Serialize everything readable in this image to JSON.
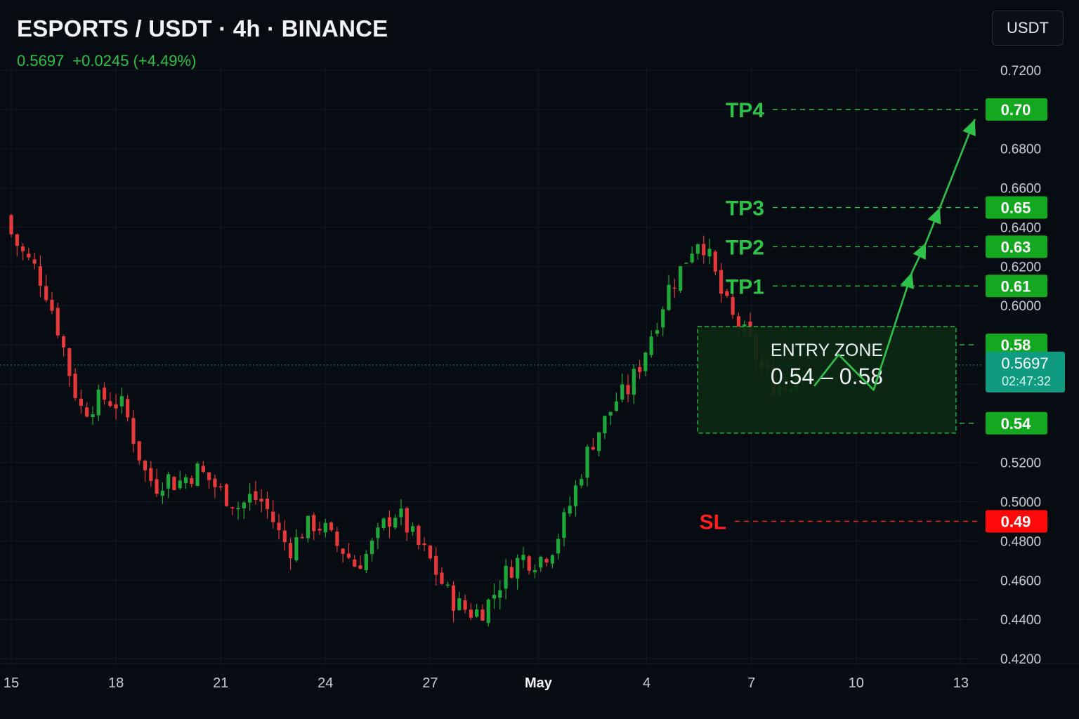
{
  "header": {
    "title": "ESPORTS / USDT · 4h · BINANCE",
    "last_price": "0.5697",
    "change": "+0.0245 (+4.49%)"
  },
  "currency_button": "USDT",
  "colors": {
    "background": "#070b12",
    "grid": "#141a24",
    "up": "#1fa83a",
    "down": "#e5393b",
    "target_green": "#2ec24a",
    "stop_red": "#ff1f1f",
    "price_badge": "#0f9b7f"
  },
  "chart_data": {
    "type": "candlestick",
    "title": "ESPORTS / USDT · 4h · BINANCE",
    "y_axis": {
      "min": 0.42,
      "max": 0.72,
      "ticks": [
        "0.7200",
        "0.7000",
        "0.6800",
        "0.6600",
        "0.6400",
        "0.6200",
        "0.6000",
        "0.5800",
        "0.5600",
        "0.5400",
        "0.5200",
        "0.5000",
        "0.4800",
        "0.4600",
        "0.4400",
        "0.4200"
      ]
    },
    "x_axis": {
      "labels": [
        {
          "text": "15",
          "day": 15,
          "bold": false
        },
        {
          "text": "18",
          "day": 18,
          "bold": false
        },
        {
          "text": "21",
          "day": 21,
          "bold": false
        },
        {
          "text": "24",
          "day": 24,
          "bold": false
        },
        {
          "text": "27",
          "day": 27,
          "bold": false
        },
        {
          "text": "May",
          "day": 30.1,
          "bold": true
        },
        {
          "text": "4",
          "day": 33.2,
          "bold": false
        },
        {
          "text": "7",
          "day": 36.2,
          "bold": false
        },
        {
          "text": "10",
          "day": 39.2,
          "bold": false
        },
        {
          "text": "13",
          "day": 42.2,
          "bold": false
        }
      ]
    },
    "current_price": {
      "value": 0.5697,
      "label": "0.5697",
      "countdown": "02:47:32"
    },
    "candle_path": [
      [
        15.0,
        0.642
      ],
      [
        15.3,
        0.632
      ],
      [
        15.6,
        0.624
      ],
      [
        15.9,
        0.618
      ],
      [
        16.2,
        0.606
      ],
      [
        16.6,
        0.583
      ],
      [
        16.9,
        0.561
      ],
      [
        17.2,
        0.546
      ],
      [
        17.5,
        0.55
      ],
      [
        17.8,
        0.553
      ],
      [
        18.1,
        0.551
      ],
      [
        18.4,
        0.548
      ],
      [
        18.7,
        0.531
      ],
      [
        19.0,
        0.515
      ],
      [
        19.3,
        0.508
      ],
      [
        19.6,
        0.513
      ],
      [
        19.9,
        0.509
      ],
      [
        20.2,
        0.513
      ],
      [
        20.5,
        0.516
      ],
      [
        20.8,
        0.512
      ],
      [
        21.1,
        0.506
      ],
      [
        21.4,
        0.502
      ],
      [
        21.7,
        0.497
      ],
      [
        22.0,
        0.502
      ],
      [
        22.3,
        0.501
      ],
      [
        22.6,
        0.493
      ],
      [
        22.9,
        0.481
      ],
      [
        23.2,
        0.476
      ],
      [
        23.5,
        0.485
      ],
      [
        23.8,
        0.489
      ],
      [
        24.1,
        0.487
      ],
      [
        24.4,
        0.479
      ],
      [
        24.7,
        0.475
      ],
      [
        25.0,
        0.468
      ],
      [
        25.3,
        0.472
      ],
      [
        25.6,
        0.48
      ],
      [
        25.9,
        0.49
      ],
      [
        26.2,
        0.495
      ],
      [
        26.5,
        0.487
      ],
      [
        26.8,
        0.478
      ],
      [
        27.1,
        0.472
      ],
      [
        27.4,
        0.462
      ],
      [
        27.7,
        0.452
      ],
      [
        28.0,
        0.447
      ],
      [
        28.3,
        0.444
      ],
      [
        28.6,
        0.444
      ],
      [
        28.9,
        0.45
      ],
      [
        29.2,
        0.46
      ],
      [
        29.5,
        0.467
      ],
      [
        29.8,
        0.472
      ],
      [
        30.1,
        0.47
      ],
      [
        30.4,
        0.472
      ],
      [
        30.7,
        0.478
      ],
      [
        31.0,
        0.49
      ],
      [
        31.3,
        0.505
      ],
      [
        31.6,
        0.522
      ],
      [
        31.9,
        0.534
      ],
      [
        32.2,
        0.542
      ],
      [
        32.5,
        0.552
      ],
      [
        32.8,
        0.556
      ],
      [
        33.1,
        0.567
      ],
      [
        33.4,
        0.581
      ],
      [
        33.7,
        0.595
      ],
      [
        34.0,
        0.609
      ],
      [
        34.3,
        0.617
      ],
      [
        34.6,
        0.628
      ],
      [
        34.9,
        0.636
      ],
      [
        35.2,
        0.622
      ],
      [
        35.5,
        0.606
      ],
      [
        35.8,
        0.594
      ],
      [
        36.1,
        0.587
      ],
      [
        36.4,
        0.578
      ],
      [
        36.7,
        0.567
      ],
      [
        37.0,
        0.56
      ],
      [
        37.3,
        0.558
      ],
      [
        37.6,
        0.564
      ],
      [
        37.9,
        0.569
      ]
    ],
    "levels": [
      {
        "name": "TP4",
        "value": 0.7,
        "label": "0.70",
        "kind": "target"
      },
      {
        "name": "TP3",
        "value": 0.65,
        "label": "0.65",
        "kind": "target"
      },
      {
        "name": "TP2",
        "value": 0.63,
        "label": "0.63",
        "kind": "target"
      },
      {
        "name": "TP1",
        "value": 0.61,
        "label": "0.61",
        "kind": "target"
      },
      {
        "name": "",
        "value": 0.58,
        "label": "0.58",
        "kind": "entry"
      },
      {
        "name": "",
        "value": 0.54,
        "label": "0.54",
        "kind": "entry"
      },
      {
        "name": "SL",
        "value": 0.49,
        "label": "0.49",
        "kind": "stop"
      }
    ],
    "entry_zone": {
      "title": "ENTRY ZONE",
      "range": "0.54 – 0.58",
      "low": 0.54,
      "high": 0.58
    },
    "projection": [
      [
        38.0,
        0.559
      ],
      [
        38.7,
        0.575
      ],
      [
        39.7,
        0.557
      ],
      [
        40.8,
        0.617
      ],
      [
        41.2,
        0.632
      ],
      [
        41.6,
        0.65
      ],
      [
        42.6,
        0.695
      ]
    ],
    "grid": true
  }
}
